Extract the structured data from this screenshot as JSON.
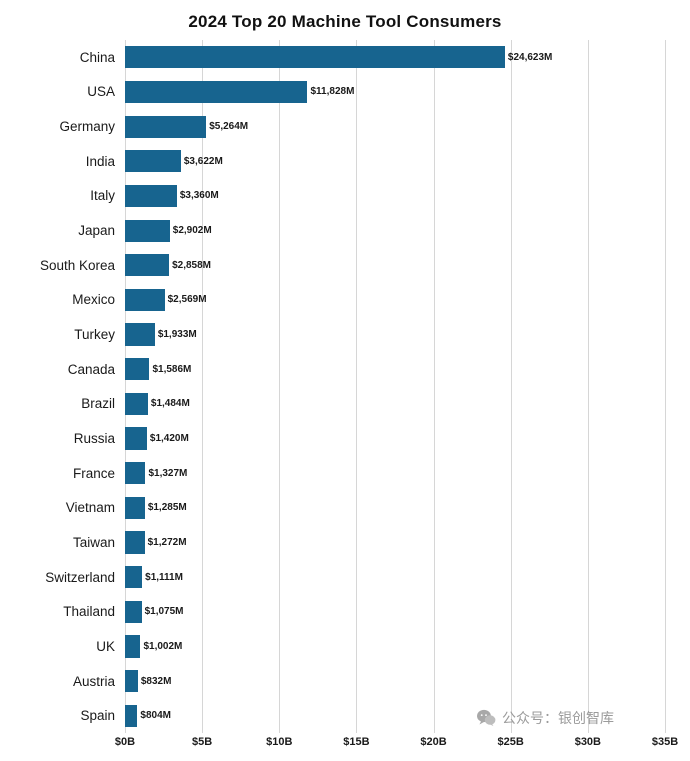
{
  "title": "2024 Top 20 Machine Tool Consumers",
  "watermark": {
    "text": "公众号：银创智库"
  },
  "chart_data": {
    "type": "bar",
    "orientation": "horizontal",
    "title": "2024 Top 20 Machine Tool Consumers",
    "categories": [
      "China",
      "USA",
      "Germany",
      "India",
      "Italy",
      "Japan",
      "South Korea",
      "Mexico",
      "Turkey",
      "Canada",
      "Brazil",
      "Russia",
      "France",
      "Vietnam",
      "Taiwan",
      "Switzerland",
      "Thailand",
      "UK",
      "Austria",
      "Spain"
    ],
    "values": [
      24623,
      11828,
      5264,
      3622,
      3360,
      2902,
      2858,
      2569,
      1933,
      1586,
      1484,
      1420,
      1327,
      1285,
      1272,
      1111,
      1075,
      1002,
      832,
      804
    ],
    "value_labels": [
      "$24,623M",
      "$11,828M",
      "$5,264M",
      "$3,622M",
      "$3,360M",
      "$2,902M",
      "$2,858M",
      "$2,569M",
      "$1,933M",
      "$1,586M",
      "$1,484M",
      "$1,420M",
      "$1,327M",
      "$1,285M",
      "$1,272M",
      "$1,111M",
      "$1,075M",
      "$1,002M",
      "$832M",
      "$804M"
    ],
    "x_ticks": [
      "$0B",
      "$5B",
      "$10B",
      "$15B",
      "$20B",
      "$25B",
      "$30B",
      "$35B"
    ],
    "xlim": [
      0,
      35000
    ],
    "units": "millions USD",
    "bar_color": "#17648f",
    "grid": true,
    "gridline_color": "#d6d6d6",
    "legend": "none"
  }
}
